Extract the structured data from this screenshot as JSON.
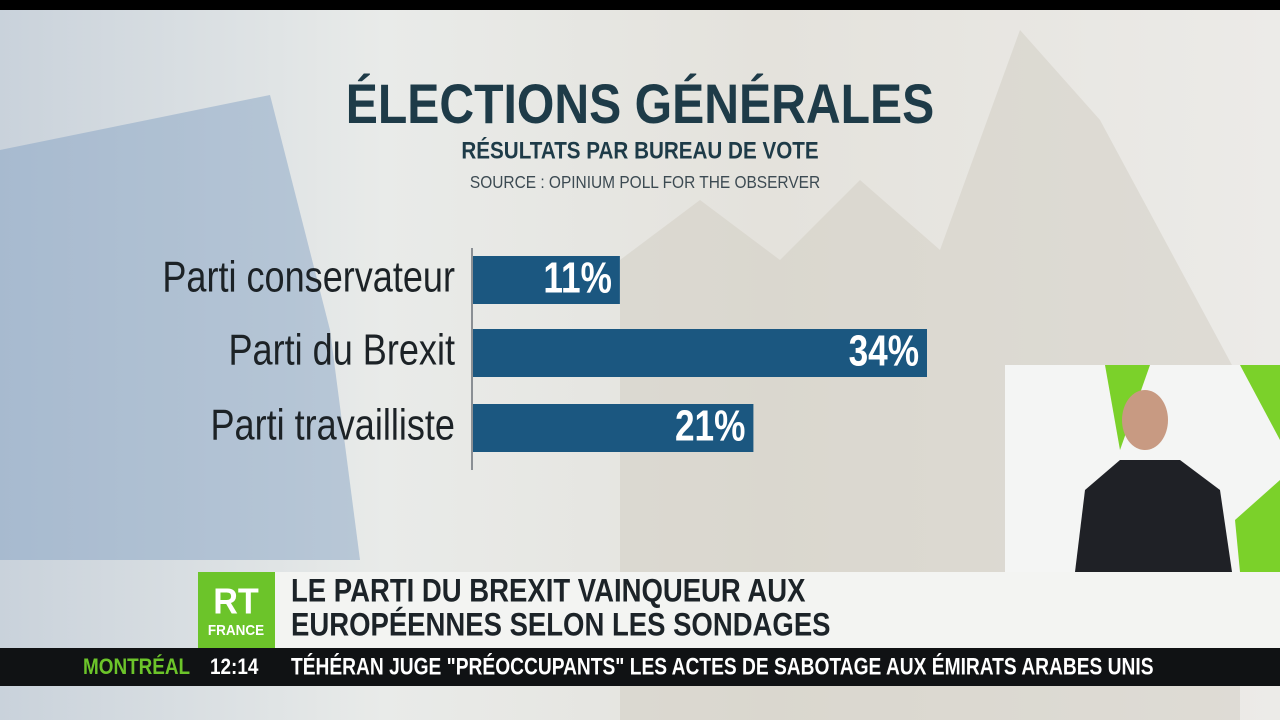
{
  "chart_data": {
    "type": "bar",
    "title": "ÉLECTIONS GÉNÉRALES",
    "subtitle": "RÉSULTATS PAR BUREAU DE VOTE",
    "source": "SOURCE : OPINIUM POLL FOR THE OBSERVER",
    "categories": [
      "Parti conservateur",
      "Parti du Brexit",
      "Parti travailliste"
    ],
    "values": [
      11,
      34,
      21
    ],
    "value_labels": [
      "11%",
      "34%",
      "21%"
    ],
    "color": "#1b5780"
  },
  "banner": {
    "logo_top": "RT",
    "logo_bottom": "FRANCE",
    "headline_lines": [
      "LE PARTI DU BREXIT VAINQUEUR AUX",
      "EUROPÉENNES SELON LES SONDAGES"
    ]
  },
  "ticker": {
    "city": "MONTRÉAL",
    "time": "12:14",
    "headline": "TÉHÉRAN JUGE \"PRÉOCCUPANTS\" LES ACTES DE SABOTAGE AUX ÉMIRATS ARABES UNIS"
  }
}
